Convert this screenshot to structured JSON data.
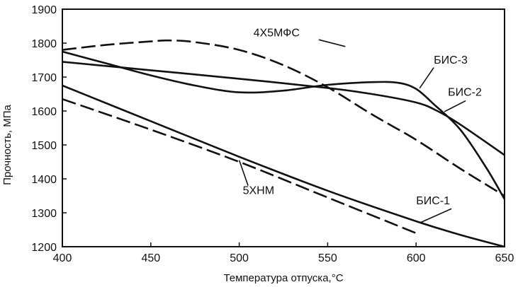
{
  "chart_data": {
    "type": "line",
    "xlabel": "Температура отпуска,°С",
    "ylabel": "Прочность, МПа",
    "xlim": [
      400,
      650
    ],
    "ylim": [
      1200,
      1900
    ],
    "x_ticks": [
      400,
      450,
      500,
      550,
      600,
      650
    ],
    "y_ticks": [
      1200,
      1300,
      1400,
      1500,
      1600,
      1700,
      1800,
      1900
    ],
    "grid": false,
    "legend": "none",
    "series": [
      {
        "name": "4Х5МФС",
        "dashed": true,
        "x": [
          400,
          425,
          450,
          460,
          475,
          500,
          525,
          550,
          575,
          600,
          625,
          650
        ],
        "y": [
          1780,
          1795,
          1805,
          1808,
          1803,
          1780,
          1735,
          1670,
          1590,
          1515,
          1430,
          1350
        ]
      },
      {
        "name": "БИС-3",
        "dashed": false,
        "x": [
          400,
          425,
          450,
          475,
          500,
          525,
          550,
          575,
          590,
          600,
          610,
          625,
          640,
          650
        ],
        "y": [
          1775,
          1740,
          1705,
          1675,
          1655,
          1660,
          1677,
          1685,
          1683,
          1665,
          1620,
          1545,
          1430,
          1340
        ]
      },
      {
        "name": "БИС-2",
        "dashed": false,
        "x": [
          400,
          450,
          500,
          550,
          575,
          600,
          612,
          625,
          650
        ],
        "y": [
          1745,
          1720,
          1695,
          1668,
          1650,
          1625,
          1600,
          1560,
          1470
        ]
      },
      {
        "name": "БИС-1",
        "dashed": false,
        "x": [
          400,
          450,
          500,
          550,
          600,
          625,
          650
        ],
        "y": [
          1675,
          1570,
          1465,
          1365,
          1275,
          1235,
          1200
        ]
      },
      {
        "name": "5ХНМ",
        "dashed": true,
        "x": [
          400,
          450,
          500,
          550,
          600
        ],
        "y": [
          1635,
          1545,
          1450,
          1345,
          1240
        ]
      }
    ],
    "annotations": [
      {
        "text": "4Х5МФС",
        "series": "4Х5МФС"
      },
      {
        "text": "БИС-3",
        "series": "БИС-3"
      },
      {
        "text": "БИС-2",
        "series": "БИС-2"
      },
      {
        "text": "БИС-1",
        "series": "БИС-1"
      },
      {
        "text": "5ХНМ",
        "series": "5ХНМ"
      }
    ]
  }
}
